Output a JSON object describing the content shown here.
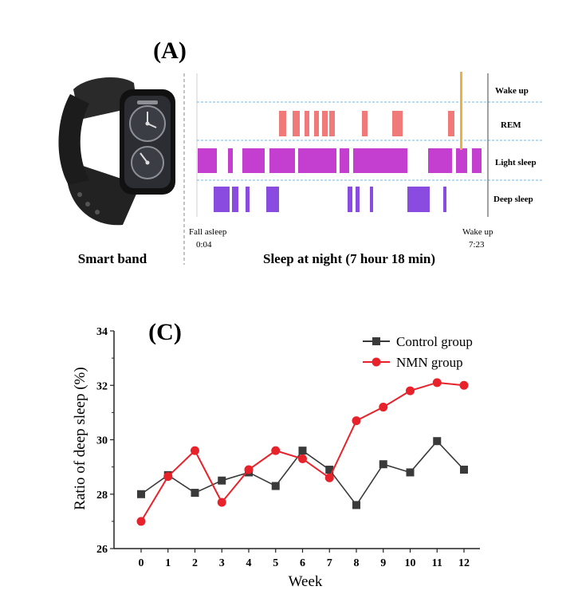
{
  "panel_a": {
    "label": "(A)",
    "device_caption": "Smart band",
    "sleep_caption": "Sleep at night (7 hour 18 min)",
    "fall_asleep_label": "Fall asleep",
    "fall_asleep_time": "0:04",
    "wake_up_label": "Wake up",
    "wake_up_time": "7:23",
    "stage_labels": [
      "Wake up",
      "REM",
      "Light sleep",
      "Deep sleep"
    ],
    "colors": {
      "rem": "#f07a7a",
      "light": "#c43fcf",
      "deep": "#8a4be0",
      "wake": "#f0b040",
      "divider": "#6fb8e8"
    }
  },
  "panel_c": {
    "label": "(C)"
  },
  "chart_data": {
    "type": "line",
    "xlabel": "Week",
    "ylabel": "Ratio of deep sleep (%)",
    "x": [
      0,
      1,
      2,
      3,
      4,
      5,
      6,
      7,
      8,
      9,
      10,
      11,
      12
    ],
    "ylim": [
      26,
      34
    ],
    "yticks": [
      26,
      28,
      30,
      32,
      34
    ],
    "grid": false,
    "legend_position": "top-right",
    "series": [
      {
        "name": "Control group",
        "color": "#3a3a3a",
        "marker": "square",
        "values": [
          28.0,
          28.7,
          28.05,
          28.5,
          28.8,
          28.3,
          29.6,
          28.9,
          27.6,
          29.1,
          28.8,
          29.95,
          28.9
        ]
      },
      {
        "name": "NMN group",
        "color": "#e8222a",
        "marker": "circle",
        "values": [
          27.0,
          28.65,
          29.6,
          27.7,
          28.9,
          29.6,
          29.3,
          28.6,
          30.7,
          31.2,
          31.8,
          32.1,
          32.0
        ]
      }
    ]
  }
}
